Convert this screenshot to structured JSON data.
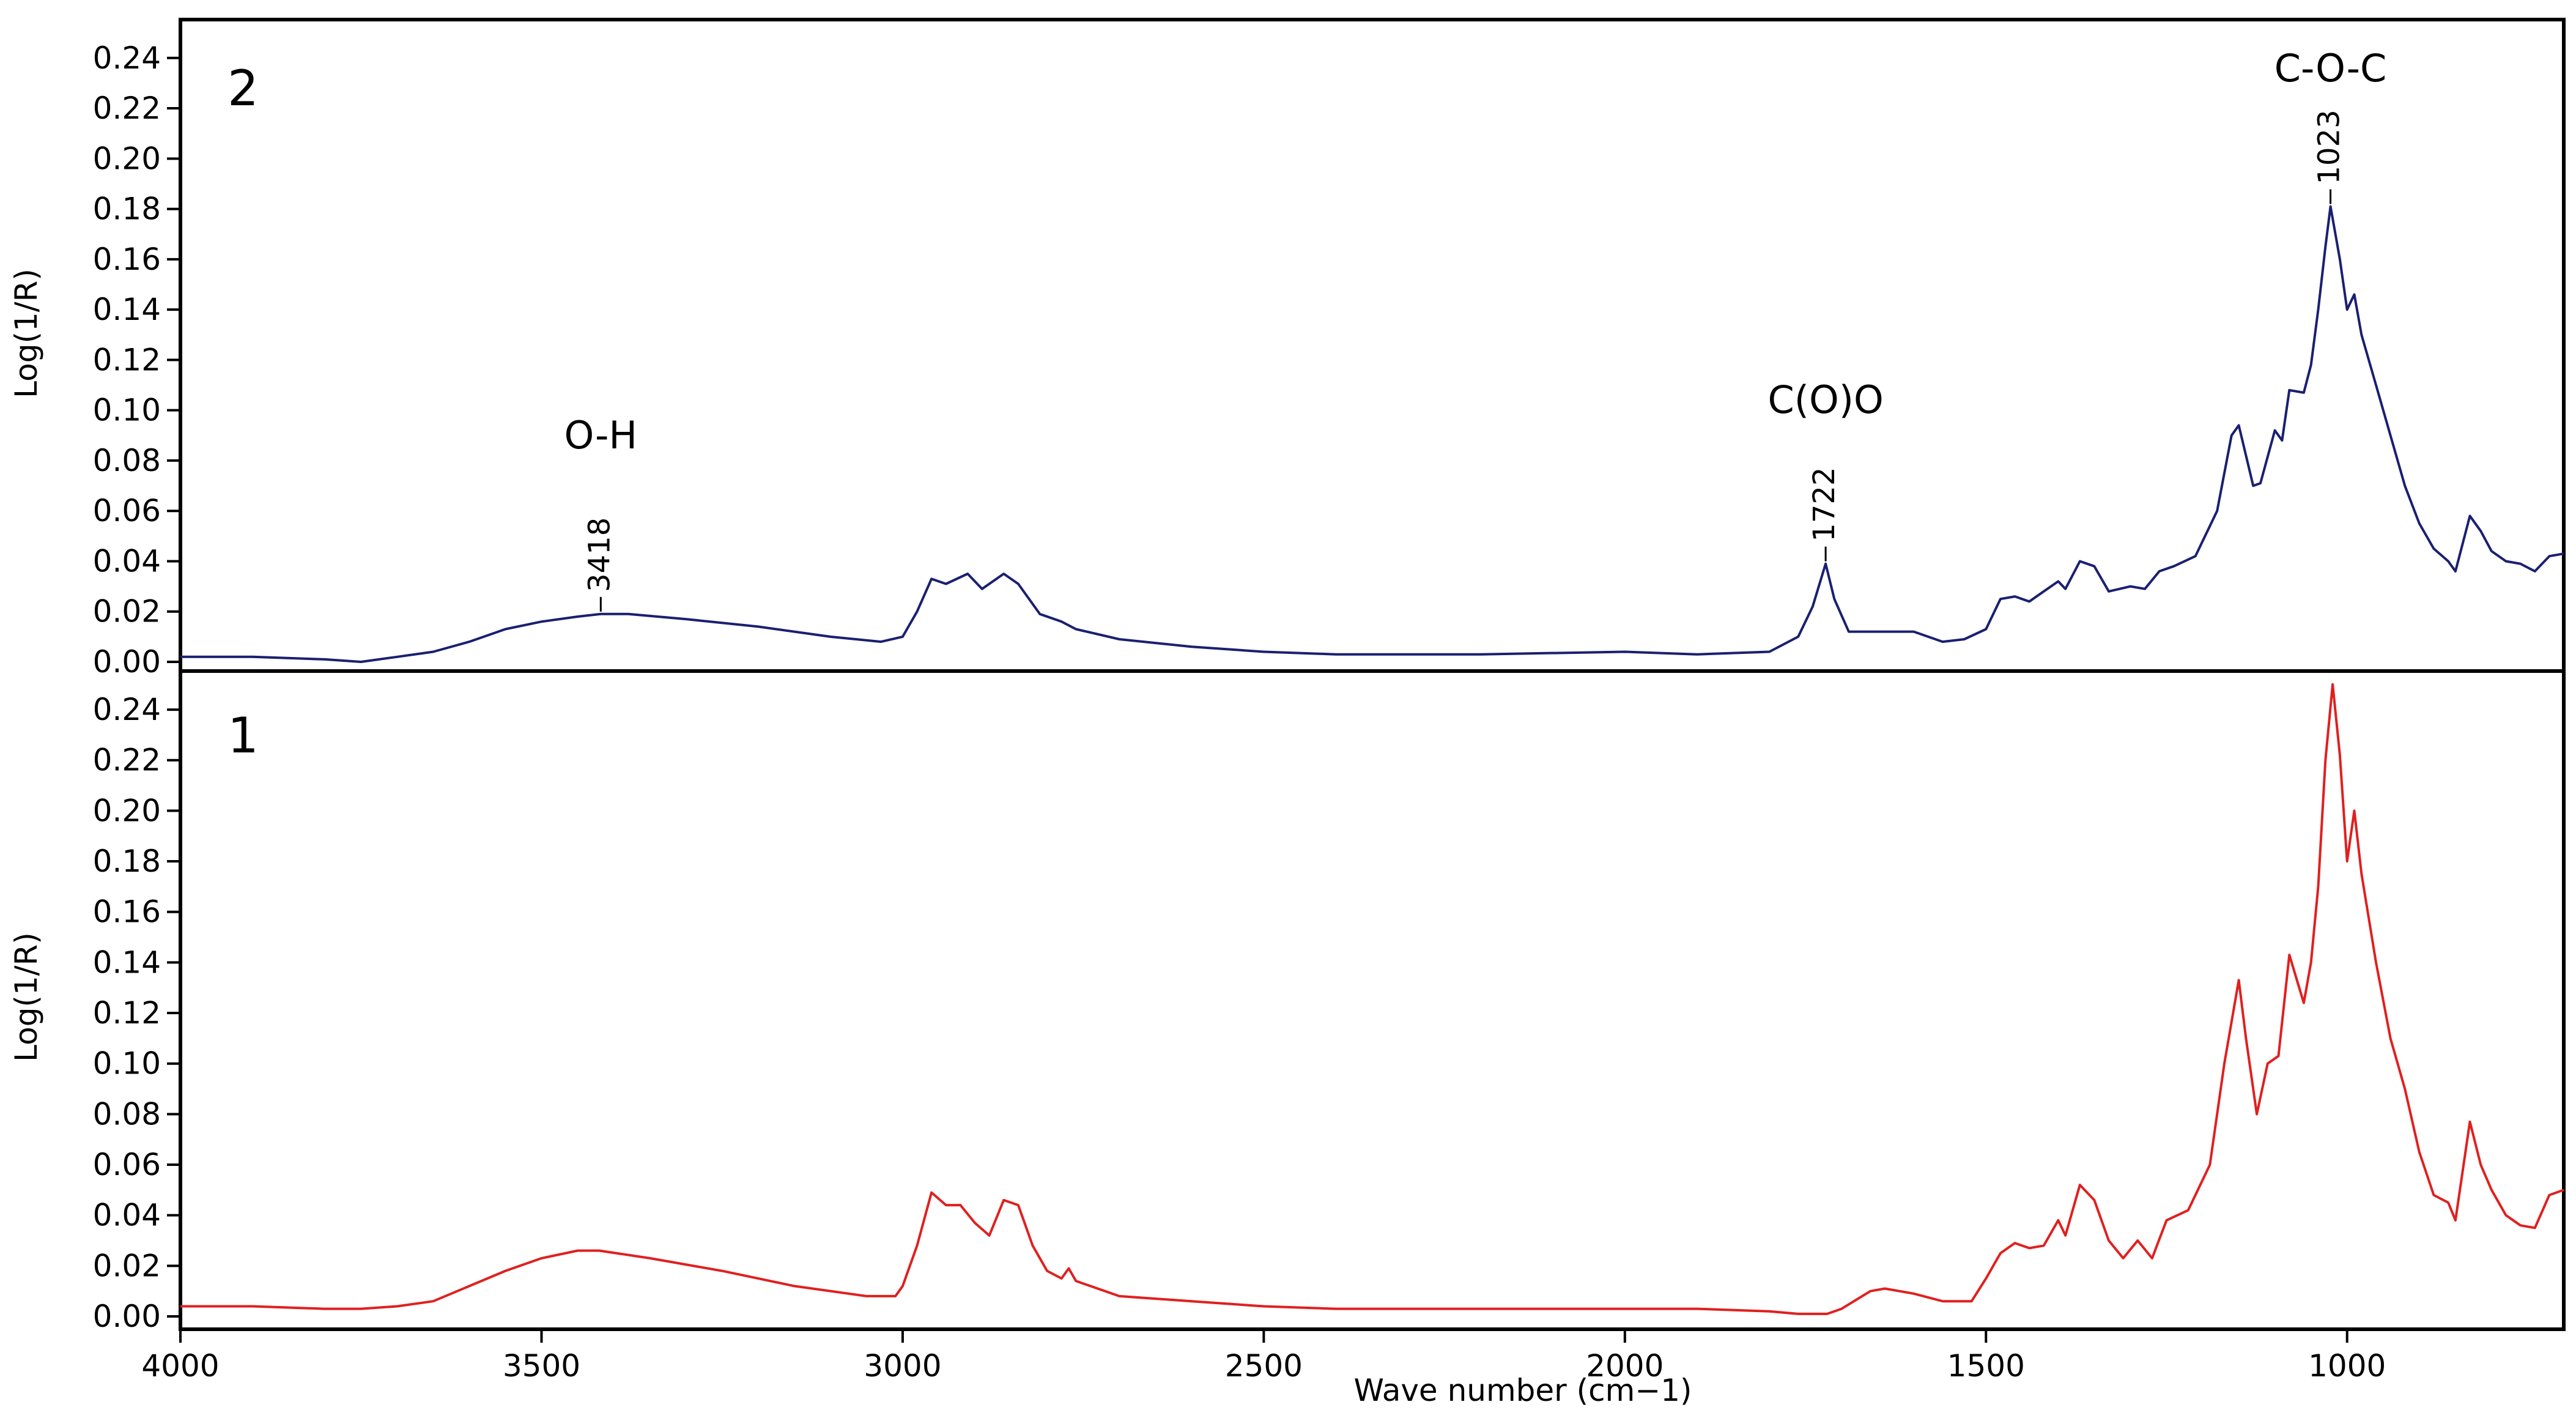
{
  "chart_data": {
    "type": "line",
    "xlabel": "Wave number (cm−1)",
    "x_ticks": [
      4000,
      3500,
      3000,
      2500,
      2000,
      1500,
      1000
    ],
    "xlim": [
      4000,
      700
    ],
    "panels": [
      {
        "label": "2",
        "ylabel": "Log(1/R)",
        "ylim": [
          0.0,
          0.25
        ],
        "y_ticks": [
          "0.00",
          "0.02",
          "0.04",
          "0.06",
          "0.08",
          "0.10",
          "0.12",
          "0.14",
          "0.16",
          "0.18",
          "0.20",
          "0.22",
          "0.24"
        ],
        "color": "#1a2070",
        "annotations": [
          {
            "group": "O-H",
            "peak": "3418",
            "x": 3418,
            "y": 0.019
          },
          {
            "group": "C(O)O",
            "peak": "1722",
            "x": 1722,
            "y": 0.039
          },
          {
            "group": "C-O-C",
            "peak": "1023",
            "x": 1023,
            "y": 0.181
          }
        ],
        "series": {
          "name": "2",
          "points": [
            [
              4000,
              0.002
            ],
            [
              3900,
              0.002
            ],
            [
              3800,
              0.001
            ],
            [
              3750,
              0.0
            ],
            [
              3700,
              0.002
            ],
            [
              3650,
              0.004
            ],
            [
              3600,
              0.008
            ],
            [
              3550,
              0.013
            ],
            [
              3500,
              0.016
            ],
            [
              3450,
              0.018
            ],
            [
              3418,
              0.019
            ],
            [
              3380,
              0.019
            ],
            [
              3300,
              0.017
            ],
            [
              3200,
              0.014
            ],
            [
              3100,
              0.01
            ],
            [
              3030,
              0.008
            ],
            [
              3000,
              0.01
            ],
            [
              2980,
              0.02
            ],
            [
              2960,
              0.033
            ],
            [
              2940,
              0.031
            ],
            [
              2910,
              0.035
            ],
            [
              2890,
              0.029
            ],
            [
              2860,
              0.035
            ],
            [
              2840,
              0.031
            ],
            [
              2810,
              0.019
            ],
            [
              2780,
              0.016
            ],
            [
              2760,
              0.013
            ],
            [
              2700,
              0.009
            ],
            [
              2600,
              0.006
            ],
            [
              2500,
              0.004
            ],
            [
              2400,
              0.003
            ],
            [
              2300,
              0.003
            ],
            [
              2200,
              0.003
            ],
            [
              2000,
              0.004
            ],
            [
              1900,
              0.003
            ],
            [
              1800,
              0.004
            ],
            [
              1760,
              0.01
            ],
            [
              1740,
              0.022
            ],
            [
              1722,
              0.039
            ],
            [
              1710,
              0.025
            ],
            [
              1690,
              0.012
            ],
            [
              1650,
              0.012
            ],
            [
              1600,
              0.012
            ],
            [
              1560,
              0.008
            ],
            [
              1530,
              0.009
            ],
            [
              1500,
              0.013
            ],
            [
              1480,
              0.025
            ],
            [
              1460,
              0.026
            ],
            [
              1440,
              0.024
            ],
            [
              1420,
              0.028
            ],
            [
              1400,
              0.032
            ],
            [
              1390,
              0.029
            ],
            [
              1370,
              0.04
            ],
            [
              1350,
              0.038
            ],
            [
              1330,
              0.028
            ],
            [
              1300,
              0.03
            ],
            [
              1280,
              0.029
            ],
            [
              1260,
              0.036
            ],
            [
              1240,
              0.038
            ],
            [
              1210,
              0.042
            ],
            [
              1180,
              0.06
            ],
            [
              1160,
              0.09
            ],
            [
              1150,
              0.094
            ],
            [
              1130,
              0.07
            ],
            [
              1120,
              0.071
            ],
            [
              1100,
              0.092
            ],
            [
              1090,
              0.088
            ],
            [
              1080,
              0.108
            ],
            [
              1060,
              0.107
            ],
            [
              1050,
              0.118
            ],
            [
              1040,
              0.14
            ],
            [
              1030,
              0.165
            ],
            [
              1023,
              0.181
            ],
            [
              1010,
              0.16
            ],
            [
              1000,
              0.14
            ],
            [
              990,
              0.146
            ],
            [
              980,
              0.13
            ],
            [
              960,
              0.11
            ],
            [
              940,
              0.09
            ],
            [
              920,
              0.07
            ],
            [
              900,
              0.055
            ],
            [
              880,
              0.045
            ],
            [
              860,
              0.04
            ],
            [
              850,
              0.036
            ],
            [
              830,
              0.058
            ],
            [
              815,
              0.052
            ],
            [
              800,
              0.044
            ],
            [
              780,
              0.04
            ],
            [
              760,
              0.039
            ],
            [
              740,
              0.036
            ],
            [
              720,
              0.042
            ],
            [
              700,
              0.043
            ]
          ]
        }
      },
      {
        "label": "1",
        "ylabel": "Log(1/R)",
        "ylim": [
          0.0,
          0.25
        ],
        "y_ticks": [
          "0.00",
          "0.02",
          "0.04",
          "0.06",
          "0.08",
          "0.10",
          "0.12",
          "0.14",
          "0.16",
          "0.18",
          "0.20",
          "0.22",
          "0.24"
        ],
        "color": "#e0201f",
        "annotations": [],
        "series": {
          "name": "1",
          "points": [
            [
              4000,
              0.004
            ],
            [
              3900,
              0.004
            ],
            [
              3800,
              0.003
            ],
            [
              3750,
              0.003
            ],
            [
              3700,
              0.004
            ],
            [
              3650,
              0.006
            ],
            [
              3600,
              0.012
            ],
            [
              3550,
              0.018
            ],
            [
              3500,
              0.023
            ],
            [
              3450,
              0.026
            ],
            [
              3420,
              0.026
            ],
            [
              3350,
              0.023
            ],
            [
              3250,
              0.018
            ],
            [
              3150,
              0.012
            ],
            [
              3050,
              0.008
            ],
            [
              3010,
              0.008
            ],
            [
              3000,
              0.012
            ],
            [
              2980,
              0.028
            ],
            [
              2960,
              0.049
            ],
            [
              2940,
              0.044
            ],
            [
              2920,
              0.044
            ],
            [
              2900,
              0.037
            ],
            [
              2880,
              0.032
            ],
            [
              2860,
              0.046
            ],
            [
              2840,
              0.044
            ],
            [
              2820,
              0.028
            ],
            [
              2800,
              0.018
            ],
            [
              2780,
              0.015
            ],
            [
              2770,
              0.019
            ],
            [
              2760,
              0.014
            ],
            [
              2700,
              0.008
            ],
            [
              2600,
              0.006
            ],
            [
              2500,
              0.004
            ],
            [
              2400,
              0.003
            ],
            [
              2300,
              0.003
            ],
            [
              2200,
              0.003
            ],
            [
              2100,
              0.003
            ],
            [
              2000,
              0.003
            ],
            [
              1900,
              0.003
            ],
            [
              1800,
              0.002
            ],
            [
              1760,
              0.001
            ],
            [
              1720,
              0.001
            ],
            [
              1700,
              0.003
            ],
            [
              1660,
              0.01
            ],
            [
              1640,
              0.011
            ],
            [
              1600,
              0.009
            ],
            [
              1560,
              0.006
            ],
            [
              1520,
              0.006
            ],
            [
              1500,
              0.015
            ],
            [
              1480,
              0.025
            ],
            [
              1460,
              0.029
            ],
            [
              1440,
              0.027
            ],
            [
              1420,
              0.028
            ],
            [
              1400,
              0.038
            ],
            [
              1390,
              0.032
            ],
            [
              1370,
              0.052
            ],
            [
              1350,
              0.046
            ],
            [
              1330,
              0.03
            ],
            [
              1310,
              0.023
            ],
            [
              1290,
              0.03
            ],
            [
              1270,
              0.023
            ],
            [
              1250,
              0.038
            ],
            [
              1220,
              0.042
            ],
            [
              1190,
              0.06
            ],
            [
              1170,
              0.1
            ],
            [
              1150,
              0.133
            ],
            [
              1140,
              0.11
            ],
            [
              1125,
              0.08
            ],
            [
              1110,
              0.1
            ],
            [
              1095,
              0.103
            ],
            [
              1080,
              0.143
            ],
            [
              1060,
              0.124
            ],
            [
              1050,
              0.14
            ],
            [
              1040,
              0.17
            ],
            [
              1030,
              0.22
            ],
            [
              1020,
              0.25
            ],
            [
              1010,
              0.222
            ],
            [
              1000,
              0.18
            ],
            [
              990,
              0.2
            ],
            [
              980,
              0.175
            ],
            [
              960,
              0.14
            ],
            [
              940,
              0.11
            ],
            [
              920,
              0.09
            ],
            [
              900,
              0.065
            ],
            [
              880,
              0.048
            ],
            [
              860,
              0.045
            ],
            [
              850,
              0.038
            ],
            [
              830,
              0.077
            ],
            [
              815,
              0.06
            ],
            [
              800,
              0.05
            ],
            [
              780,
              0.04
            ],
            [
              760,
              0.036
            ],
            [
              740,
              0.035
            ],
            [
              720,
              0.048
            ],
            [
              700,
              0.05
            ]
          ]
        }
      }
    ]
  }
}
